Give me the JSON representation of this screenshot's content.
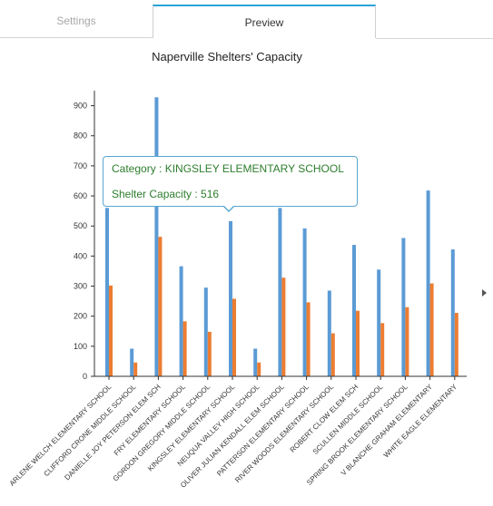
{
  "tabs": [
    {
      "label": "Settings"
    },
    {
      "label": "Preview"
    }
  ],
  "tooltip": {
    "category_prefix": "Category : ",
    "category_value": "KINGSLEY ELEMENTARY SCHOOL",
    "capacity_prefix": "Shelter Capacity : ",
    "capacity_value": "516"
  },
  "icons": {
    "scroll_right": "triangle-right-icon"
  },
  "colors": {
    "series_blue": "#5b9bd5",
    "series_orange": "#ed7d31",
    "tab_accent": "#29a3d8"
  },
  "chart_data": {
    "type": "bar",
    "title": "Naperville Shelters' Capacity",
    "xlabel": "",
    "ylabel": "",
    "ylim": [
      0,
      950
    ],
    "yticks": [
      0,
      100,
      200,
      300,
      400,
      500,
      600,
      700,
      800,
      900
    ],
    "grid": false,
    "categories": [
      "ARLENE WELCH ELEMENTARY SCHOOL",
      "CLIFFORD CRONE MIDDLE SCHOOL",
      "DANIELLE JOY PETERSON ELEM SCH",
      "FRY ELEMENTARY SCHOOL",
      "GORDON GREGORY MIDDLE SCHOOL",
      "KINGSLEY ELEMENTARY SCHOOL",
      "NEUQUA VALLEY HIGH SCHOOL",
      "OLIVER JULIAN KENDALL ELEM SCHOOL",
      "PATTERSON ELEMENTARY SCHOOL",
      "RIVER WOODS ELEMENTARY SCHOOL",
      "ROBERT CLOW ELEM SCH",
      "SCULLEN MIDDLE SCHOOL",
      "SPRING BROOK ELEMENTARY SCHOOL",
      "V BLANCHE GRAHAM ELEMENTARY",
      "WHITE EAGLE ELEMENTARY"
    ],
    "series": [
      {
        "values": [
          560,
          92,
          928,
          366,
          295,
          516,
          92,
          560,
          492,
          285,
          437,
          355,
          460,
          618,
          422
        ]
      },
      {
        "values": [
          302,
          46,
          464,
          183,
          148,
          258,
          46,
          328,
          246,
          143,
          218,
          177,
          230,
          309,
          211
        ]
      }
    ]
  }
}
